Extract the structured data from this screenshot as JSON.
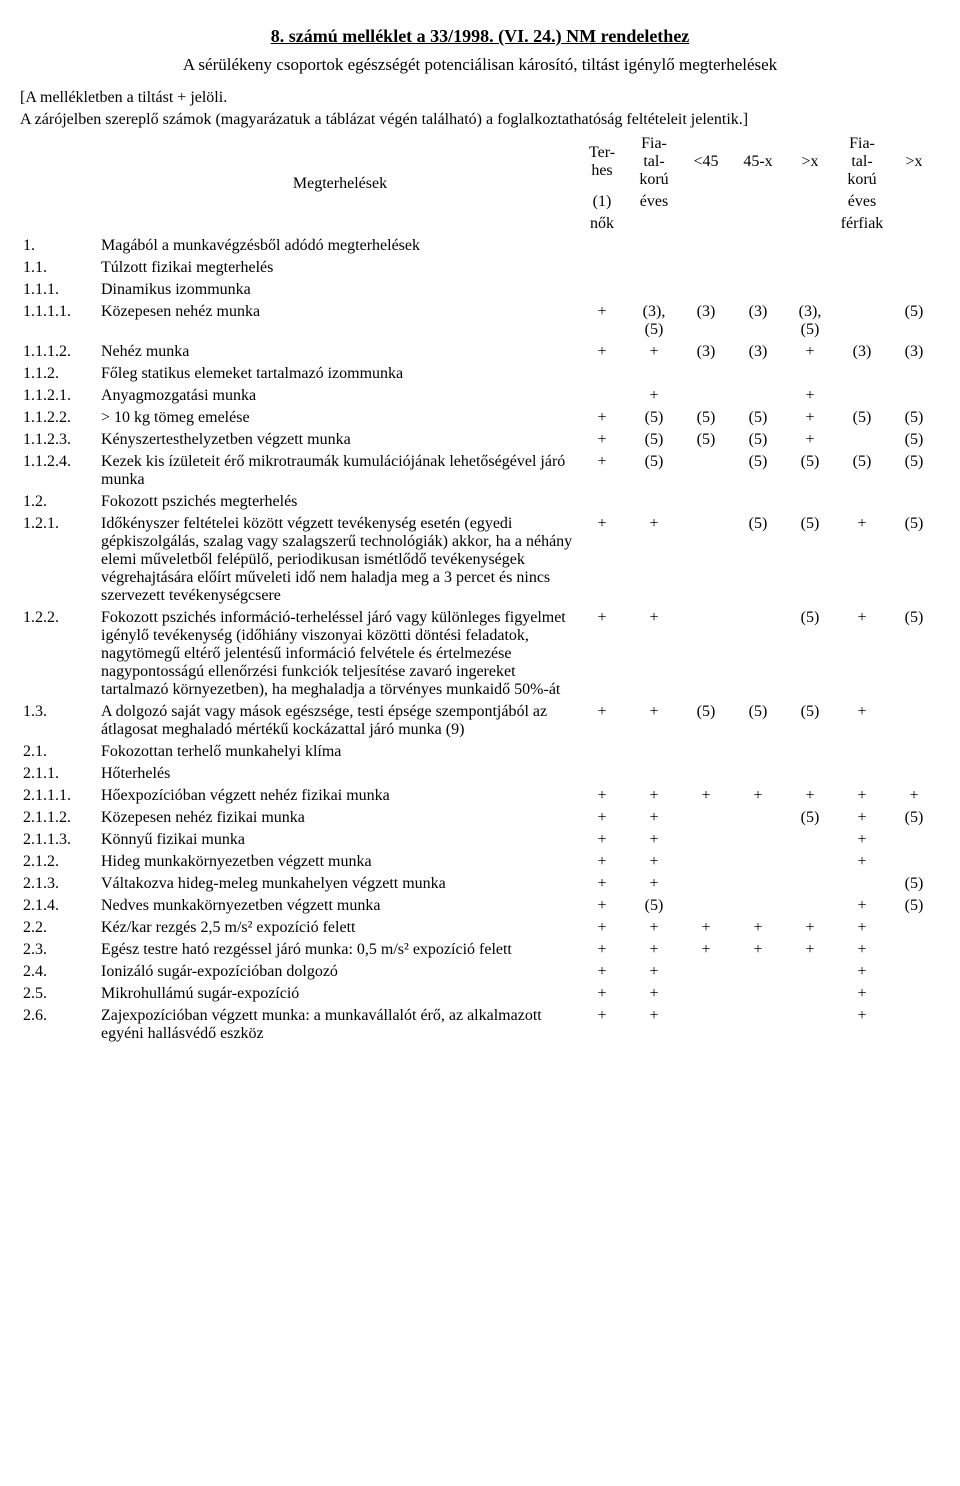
{
  "title": "8. számú melléklet a 33/1998. (VI. 24.) NM rendelethez",
  "subtitle": "A sérülékeny csoportok egészségét potenciálisan károsító, tiltást igénylő megterhelések",
  "note1": "[A mellékletben a tiltást + jelöli.",
  "note2": "A zárójelben szereplő számok (magyarázatuk a táblázat végén található) a foglalkoztathatóság feltételeit jelentik.]",
  "header": {
    "col1": "Megterhelések",
    "terhes": "Ter-\nhes",
    "fia1": "Fia-\ntal-\nkorú",
    "lt45": "<45",
    "r45x": "45-x",
    "gtx": ">x",
    "fia2": "Fia-\ntal-\nkorú",
    "gtx2": ">x",
    "sub1": "(1)",
    "eves1": "éves",
    "eves2": "éves",
    "nok": "nők",
    "ferfiak": "férfiak"
  },
  "rows": [
    {
      "n": "1.",
      "t": "Magából a munkavégzésből adódó megterhelések"
    },
    {
      "n": "1.1.",
      "t": "Túlzott fizikai megterhelés"
    },
    {
      "n": "1.1.1.",
      "t": "Dinamikus izommunka"
    },
    {
      "n": "1.1.1.1.",
      "t": "Közepesen nehéz munka",
      "v": [
        "+",
        "(3),\n(5)",
        "(3)",
        "(3)",
        "(3),\n(5)",
        "",
        "(5)"
      ]
    },
    {
      "n": "1.1.1.2.",
      "t": "Nehéz munka",
      "v": [
        "+",
        "+",
        "(3)",
        "(3)",
        "+",
        "(3)",
        "(3)"
      ]
    },
    {
      "n": "1.1.2.",
      "t": "Főleg statikus elemeket tartalmazó izommunka"
    },
    {
      "n": "1.1.2.1.",
      "t": "Anyagmozgatási munka",
      "v": [
        "",
        "+",
        "",
        "",
        "+",
        "",
        ""
      ]
    },
    {
      "n": "1.1.2.2.",
      "t": "> 10 kg tömeg emelése",
      "v": [
        "+",
        "(5)",
        "(5)",
        "(5)",
        "+",
        "(5)",
        "(5)"
      ]
    },
    {
      "n": "1.1.2.3.",
      "t": "Kényszertesthelyzetben végzett munka",
      "v": [
        "+",
        "(5)",
        "(5)",
        "(5)",
        "+",
        "",
        "(5)"
      ]
    },
    {
      "n": "1.1.2.4.",
      "t": "Kezek kis ízületeit érő mikrotraumák kumulációjának lehetőségével járó munka",
      "v": [
        "+",
        "(5)",
        "",
        "(5)",
        "(5)",
        "(5)",
        "(5)"
      ]
    },
    {
      "n": "1.2.",
      "t": "Fokozott pszichés megterhelés"
    },
    {
      "n": "1.2.1.",
      "t": "Időkényszer feltételei között végzett tevékenység esetén (egyedi gépkiszolgálás, szalag vagy szalagszerű technológiák) akkor, ha a néhány elemi műveletből felépülő, periodikusan ismétlődő tevékenységek végrehajtására előírt műveleti idő nem haladja meg a 3 percet és nincs szervezett tevékenységcsere",
      "v": [
        "+",
        "+",
        "",
        "(5)",
        "(5)",
        "+",
        "(5)"
      ]
    },
    {
      "n": "1.2.2.",
      "t": "Fokozott pszichés információ-terheléssel járó vagy különleges figyelmet igénylő tevékenység (időhiány viszonyai közötti döntési feladatok, nagytömegű eltérő jelentésű információ felvétele és értelmezése nagypontosságú ellenőrzési funkciók teljesítése zavaró ingereket tartalmazó környezetben), ha meghaladja a törvényes munkaidő 50%-át",
      "v": [
        "+",
        "+",
        "",
        "",
        "(5)",
        "+",
        "(5)"
      ]
    },
    {
      "n": "1.3.",
      "t": "A dolgozó saját vagy mások egészsége, testi épsége szempontjából az átlagosat meghaladó mértékű kockázattal járó munka (9)",
      "v": [
        "+",
        "+",
        "(5)",
        "(5)",
        "(5)",
        "+",
        ""
      ]
    },
    {
      "n": "2.1.",
      "t": "Fokozottan terhelő munkahelyi klíma"
    },
    {
      "n": "2.1.1.",
      "t": "Hőterhelés"
    },
    {
      "n": "2.1.1.1.",
      "t": "Hőexpozícióban végzett nehéz fizikai munka",
      "v": [
        "+",
        "+",
        "+",
        "+",
        "+",
        "+",
        "+"
      ]
    },
    {
      "n": "2.1.1.2.",
      "t": "Közepesen nehéz fizikai munka",
      "v": [
        "+",
        "+",
        "",
        "",
        "(5)",
        "+",
        "(5)"
      ]
    },
    {
      "n": "2.1.1.3.",
      "t": "Könnyű fizikai munka",
      "v": [
        "+",
        "+",
        "",
        "",
        "",
        "+",
        ""
      ]
    },
    {
      "n": "2.1.2.",
      "t": "Hideg munkakörnyezetben végzett munka",
      "v": [
        "+",
        "+",
        "",
        "",
        "",
        "+",
        ""
      ]
    },
    {
      "n": "2.1.3.",
      "t": "Váltakozva hideg-meleg munkahelyen végzett munka",
      "v": [
        "+",
        "+",
        "",
        "",
        "",
        "",
        "(5)"
      ]
    },
    {
      "n": "2.1.4.",
      "t": "Nedves munkakörnyezetben végzett munka",
      "v": [
        "+",
        "(5)",
        "",
        "",
        "",
        "+",
        "(5)"
      ]
    },
    {
      "n": "2.2.",
      "t": "Kéz/kar rezgés 2,5 m/s² expozíció felett",
      "v": [
        "+",
        "+",
        "+",
        "+",
        "+",
        "+",
        ""
      ]
    },
    {
      "n": "2.3.",
      "t": "Egész testre ható rezgéssel járó munka: 0,5 m/s² expozíció felett",
      "v": [
        "+",
        "+",
        "+",
        "+",
        "+",
        "+",
        ""
      ]
    },
    {
      "n": "2.4.",
      "t": "Ionizáló sugár-expozícióban dolgozó",
      "v": [
        "+",
        "+",
        "",
        "",
        "",
        "+",
        ""
      ]
    },
    {
      "n": "2.5.",
      "t": "Mikrohullámú sugár-expozíció",
      "v": [
        "+",
        "+",
        "",
        "",
        "",
        "+",
        ""
      ]
    },
    {
      "n": "2.6.",
      "t": "Zajexpozícióban végzett munka: a munkavállalót érő, az alkalmazott egyéni hallásvédő eszköz",
      "v": [
        "+",
        "+",
        "",
        "",
        "",
        "+",
        ""
      ]
    }
  ]
}
